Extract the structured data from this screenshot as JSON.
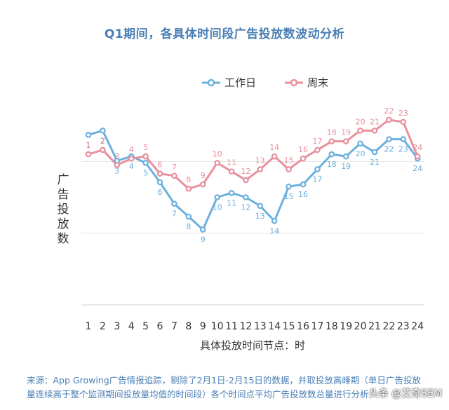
{
  "chart_data": {
    "type": "line",
    "title": "Q1期间，各具体时间段广告投放数波动分析",
    "xlabel": "具体投放时间节点：时",
    "ylabel": "广告投放数",
    "categories": [
      "1",
      "2",
      "3",
      "4",
      "5",
      "6",
      "7",
      "8",
      "9",
      "10",
      "11",
      "12",
      "13",
      "14",
      "15",
      "16",
      "17",
      "18",
      "19",
      "20",
      "21",
      "22",
      "23",
      "24"
    ],
    "ylim": [
      0,
      100
    ],
    "grid": true,
    "legend": "top",
    "series": [
      {
        "name": "工作日",
        "color": "#6cb0de",
        "values": [
          79,
          81,
          67,
          69,
          66,
          57,
          47,
          41,
          35,
          50,
          52,
          50,
          46,
          39,
          55,
          56,
          63,
          70,
          69,
          75,
          71,
          77,
          77,
          68
        ],
        "point_labels": [
          "1",
          "2",
          "3",
          "4",
          "5",
          "6",
          "7",
          "8",
          "9",
          "10",
          "11",
          "12",
          "13",
          "14",
          "15",
          "16",
          "17",
          "18",
          "19",
          "20",
          "21",
          "22",
          "23",
          "24"
        ]
      },
      {
        "name": "周末",
        "color": "#e8909c",
        "values": [
          70,
          72,
          65,
          68,
          69,
          61,
          60,
          54,
          56,
          66,
          62,
          58,
          63,
          69,
          63,
          68,
          72,
          76,
          76,
          81,
          81,
          86,
          85,
          69
        ],
        "point_labels": [
          "1",
          "2",
          "3",
          "4",
          "5",
          "6",
          "7",
          "8",
          "9",
          "10",
          "11",
          "12",
          "13",
          "14",
          "15",
          "16",
          "17",
          "18",
          "19",
          "20",
          "21",
          "22",
          "23",
          "24"
        ]
      }
    ]
  },
  "footnote": {
    "line1": "来源：App Growing广告情报追踪，剔除了2月1日-2月15日的数据，并取投放高峰期（单日广告投放",
    "line2": "量连续高于整个监测期间投放量均值的时间段）各个时间点平均广告投放数总量进行分析"
  },
  "watermark": "头条 @艾奇SEM"
}
